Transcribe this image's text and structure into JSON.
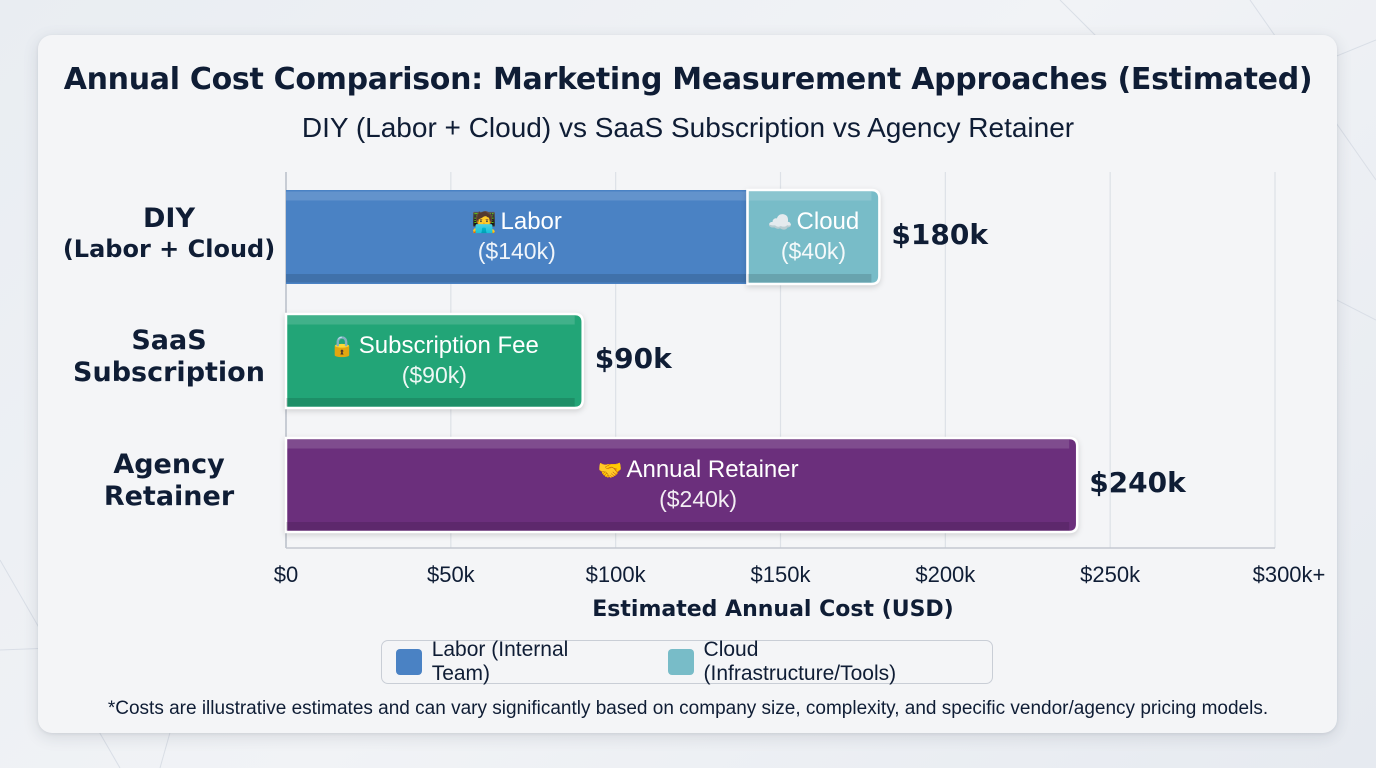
{
  "title": "Annual Cost Comparison: Marketing Measurement Approaches (Estimated)",
  "subtitle": "DIY (Labor + Cloud) vs SaaS Subscription vs Agency Retainer",
  "footnote": "*Costs are illustrative estimates and can vary significantly based on company size, complexity, and specific vendor/agency pricing models.",
  "colors": {
    "labor": "#4a82c4",
    "cloud": "#78bcc8",
    "saas": "#22a577",
    "agency": "#6b2f7c",
    "text": "#0f1d35"
  },
  "chart_data": {
    "type": "bar",
    "orientation": "horizontal",
    "stacked": true,
    "title": "Annual Cost Comparison: Marketing Measurement Approaches (Estimated)",
    "subtitle": "DIY (Labor + Cloud) vs SaaS Subscription vs Agency Retainer",
    "xlabel": "Estimated Annual Cost (USD)",
    "ylabel": "",
    "xlim": [
      0,
      300
    ],
    "x_unit": "thousand USD",
    "grid": true,
    "x_ticks": [
      0,
      50,
      100,
      150,
      200,
      250,
      300
    ],
    "x_tick_labels": [
      "$0",
      "$50k",
      "$100k",
      "$150k",
      "$200k",
      "$250k",
      "$300k+"
    ],
    "categories": [
      {
        "line1": "DIY",
        "line2": "(Labor + Cloud)"
      },
      {
        "line1": "SaaS",
        "line2": "Subscription"
      },
      {
        "line1": "Agency",
        "line2": "Retainer"
      }
    ],
    "bars": [
      {
        "category": "DIY (Labor + Cloud)",
        "total": 180,
        "total_label": "$180k",
        "segments": [
          {
            "name": "Labor",
            "icon": "technologist-icon",
            "glyph": "🧑‍💻",
            "value": 140,
            "value_label": "($140k)",
            "color_key": "labor"
          },
          {
            "name": "Cloud",
            "icon": "cloud-icon",
            "glyph": "☁️",
            "value": 40,
            "value_label": "($40k)",
            "color_key": "cloud"
          }
        ]
      },
      {
        "category": "SaaS Subscription",
        "total": 90,
        "total_label": "$90k",
        "segments": [
          {
            "name": "Subscription Fee",
            "icon": "lock-icon",
            "glyph": "🔒",
            "value": 90,
            "value_label": "($90k)",
            "color_key": "saas"
          }
        ]
      },
      {
        "category": "Agency Retainer",
        "total": 240,
        "total_label": "$240k",
        "segments": [
          {
            "name": "Annual Retainer",
            "icon": "handshake-icon",
            "glyph": "🤝",
            "value": 240,
            "value_label": "($240k)",
            "color_key": "agency"
          }
        ]
      }
    ],
    "legend": {
      "placement": "bottom-center",
      "entries": [
        {
          "label": "Labor (Internal Team)",
          "color_key": "labor"
        },
        {
          "label": "Cloud (Infrastructure/Tools)",
          "color_key": "cloud"
        }
      ]
    }
  }
}
